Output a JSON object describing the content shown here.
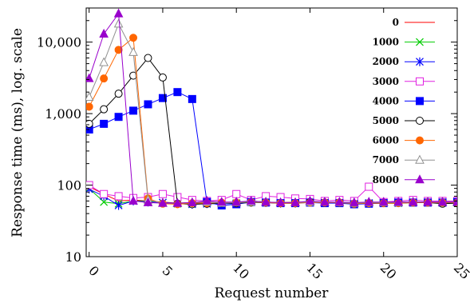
{
  "chart_data": {
    "type": "line",
    "xlabel": "Request number",
    "ylabel": "Response time (ms), log. scale",
    "xlim": [
      -0.2,
      25
    ],
    "ylim": [
      10,
      30000
    ],
    "y_scale": "log",
    "xticks": [
      0,
      5,
      10,
      15,
      20,
      25
    ],
    "xtick_labels": [
      "0",
      "5",
      "10",
      "15",
      "20",
      "25"
    ],
    "yticks": [
      10,
      100,
      1000,
      10000
    ],
    "ytick_labels": [
      "10",
      "100",
      "1,000",
      "10,000"
    ],
    "grid": false,
    "legend_position": "right inside",
    "series": [
      {
        "name": "0",
        "color": "#ff0000",
        "marker": "none",
        "values": [
          95,
          75,
          60,
          62,
          60,
          58,
          56,
          57,
          57,
          57,
          57,
          60,
          58,
          57,
          58,
          58,
          58,
          57,
          56,
          56,
          56,
          56,
          57,
          57,
          57,
          57
        ]
      },
      {
        "name": "1000",
        "color": "#00cc00",
        "marker": "x",
        "values": [
          90,
          58,
          55,
          60,
          60,
          57,
          55,
          55,
          55,
          55,
          56,
          60,
          58,
          57,
          57,
          58,
          57,
          57,
          56,
          56,
          56,
          56,
          57,
          57,
          57,
          57
        ]
      },
      {
        "name": "2000",
        "color": "#0000ff",
        "marker": "star",
        "values": [
          88,
          70,
          52,
          60,
          58,
          57,
          56,
          54,
          55,
          55,
          55,
          58,
          57,
          56,
          56,
          58,
          57,
          57,
          55,
          56,
          58,
          58,
          58,
          58,
          58,
          58
        ]
      },
      {
        "name": "3000",
        "color": "#e020e0",
        "marker": "open-square",
        "values": [
          100,
          75,
          70,
          66,
          68,
          75,
          68,
          62,
          60,
          62,
          75,
          62,
          70,
          68,
          65,
          64,
          60,
          62,
          60,
          95,
          58,
          60,
          62,
          60,
          60,
          60
        ]
      },
      {
        "name": "4000",
        "color": "#0000ff",
        "marker": "filled-square",
        "values": [
          600,
          720,
          900,
          1100,
          1350,
          1650,
          2000,
          1600,
          58,
          52,
          54,
          58,
          57,
          56,
          56,
          57,
          56,
          56,
          54,
          55,
          56,
          57,
          57,
          57,
          57,
          58
        ]
      },
      {
        "name": "5000",
        "color": "#000000",
        "marker": "open-circle",
        "values": [
          720,
          1150,
          1900,
          3400,
          6000,
          3200,
          55,
          54,
          55,
          56,
          56,
          57,
          57,
          56,
          56,
          58,
          57,
          57,
          55,
          56,
          56,
          56,
          57,
          57,
          55,
          56
        ]
      },
      {
        "name": "6000",
        "color": "#ff6600",
        "marker": "filled-circle",
        "values": [
          1250,
          3100,
          7800,
          11500,
          65,
          55,
          54,
          56,
          56,
          57,
          57,
          58,
          57,
          56,
          56,
          57,
          57,
          57,
          55,
          56,
          56,
          56,
          57,
          57,
          57,
          57
        ]
      },
      {
        "name": "7000",
        "color": "#909090",
        "marker": "open-triangle",
        "values": [
          1700,
          5200,
          18000,
          7200,
          62,
          56,
          56,
          57,
          58,
          56,
          57,
          58,
          58,
          57,
          57,
          58,
          58,
          57,
          56,
          57,
          57,
          57,
          58,
          58,
          58,
          58
        ]
      },
      {
        "name": "8000",
        "color": "#9900cc",
        "marker": "filled-triangle",
        "values": [
          3100,
          13000,
          25000,
          60,
          57,
          56,
          56,
          57,
          60,
          58,
          58,
          60,
          58,
          57,
          57,
          60,
          58,
          58,
          57,
          58,
          58,
          58,
          58,
          58,
          58,
          58
        ]
      }
    ]
  }
}
